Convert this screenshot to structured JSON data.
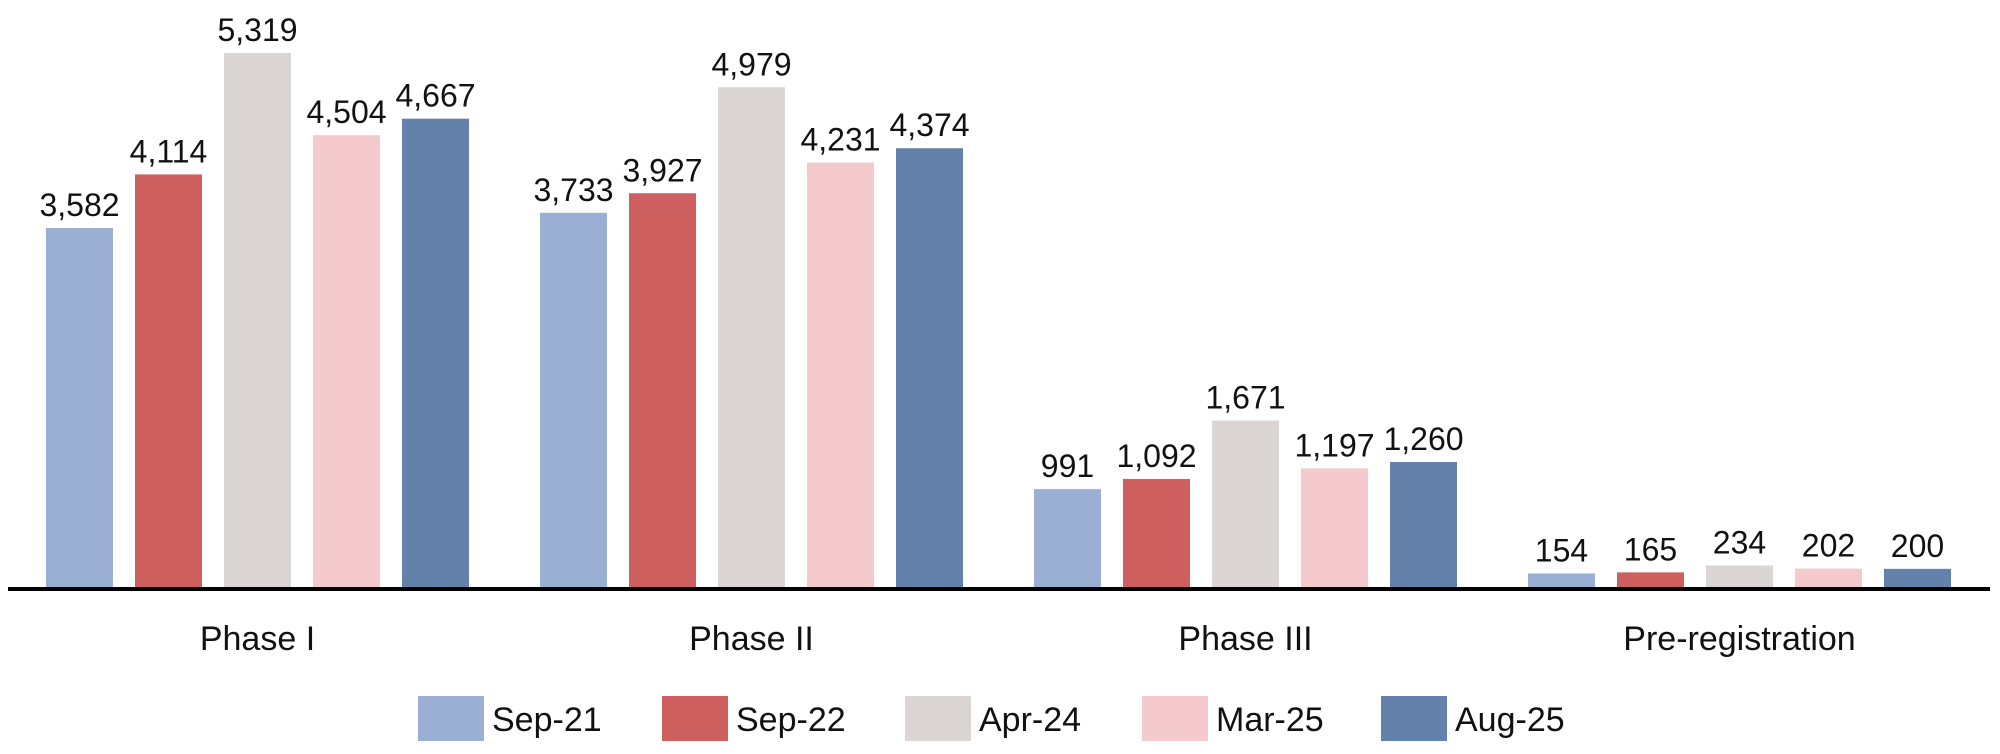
{
  "chart_data": {
    "type": "bar",
    "title": "",
    "xlabel": "",
    "ylabel": "",
    "categories": [
      "Phase I",
      "Phase II",
      "Phase III",
      "Pre-registration"
    ],
    "series": [
      {
        "name": "Sep-21",
        "color": "#9aafd3",
        "values": [
          3582,
          3733,
          991,
          154
        ],
        "labels": [
          "3,582",
          "3,733",
          "991",
          "154"
        ]
      },
      {
        "name": "Sep-22",
        "color": "#cd5f5f",
        "values": [
          4114,
          3927,
          1092,
          165
        ],
        "labels": [
          "4,114",
          "3,927",
          "1,092",
          "165"
        ]
      },
      {
        "name": "Apr-24",
        "color": "#dbd6d3",
        "values": [
          5319,
          4979,
          1671,
          234
        ],
        "labels": [
          "5,319",
          "4,979",
          "1,671",
          "234"
        ]
      },
      {
        "name": "Mar-25",
        "color": "#f4cacc",
        "values": [
          4504,
          4231,
          1197,
          202
        ],
        "labels": [
          "4,504",
          "4,231",
          "1,197",
          "202"
        ]
      },
      {
        "name": "Aug-25",
        "color": "#6481ac",
        "values": [
          4667,
          4374,
          1260,
          200
        ],
        "labels": [
          "4,667",
          "4,374",
          "1,260",
          "200"
        ]
      }
    ],
    "ylim": [
      0,
      5319
    ],
    "grid": false,
    "y_axis_visible": false,
    "data_labels": true,
    "legend_position": "bottom"
  }
}
